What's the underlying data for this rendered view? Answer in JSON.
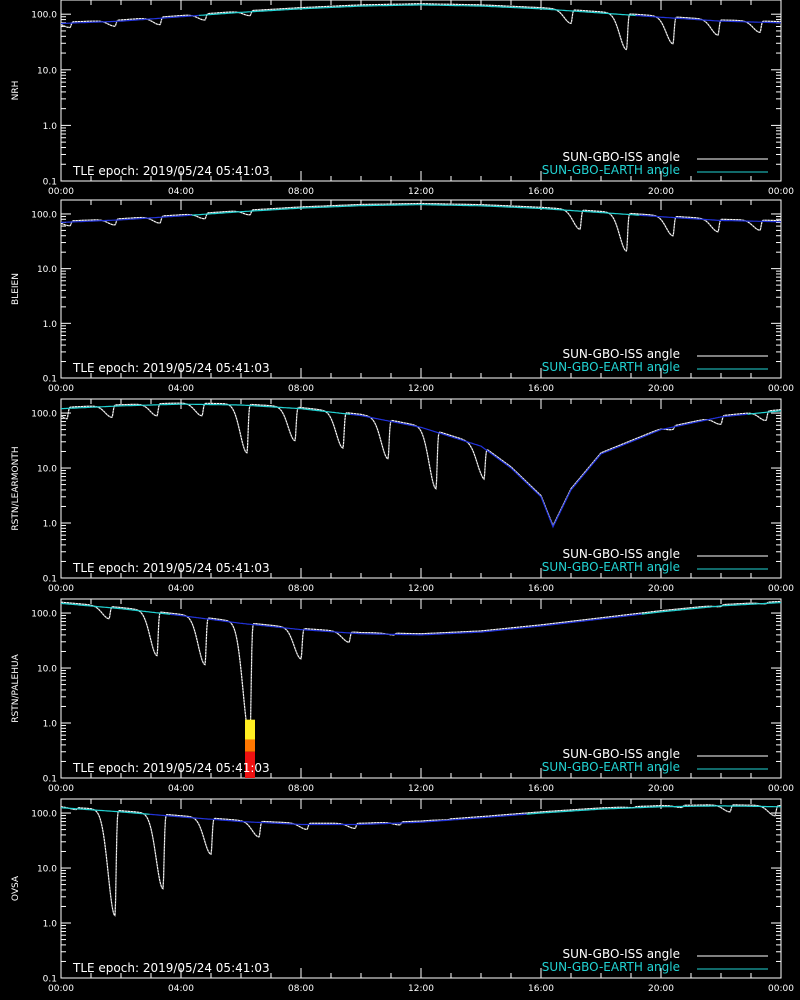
{
  "legend": {
    "iss_label": "SUN-GBO-ISS angle",
    "earth_label": "SUN-GBO-EARTH angle",
    "iss_color": "#ffffff",
    "earth_color": "#22d3d3",
    "earth_dip_color": "#2233dd",
    "iss_far_color": "#8a8a8a"
  },
  "epoch_text": "TLE epoch: 2019/05/24 05:41:03",
  "chart_data": [
    {
      "type": "line",
      "ylabel": "NRH",
      "xlim": [
        0,
        24
      ],
      "ylim": [
        0.1,
        180
      ],
      "yscale": "log",
      "x_ticks": [
        "00:00",
        "04:00",
        "08:00",
        "12:00",
        "16:00",
        "20:00",
        "00:00"
      ],
      "y_ticks": [
        "0.1",
        "1.0",
        "10.0",
        "100.0"
      ],
      "series": [
        {
          "name": "SUN-GBO-EARTH angle",
          "x": [
            0,
            2,
            4,
            6,
            8,
            10,
            12,
            14,
            16,
            18,
            20,
            22,
            24
          ],
          "y": [
            68,
            75,
            90,
            108,
            125,
            140,
            147,
            140,
            125,
            105,
            88,
            75,
            70
          ]
        },
        {
          "name": "SUN-GBO-ISS angle",
          "minima": [
            {
              "t": 0.3,
              "v": 55
            },
            {
              "t": 1.8,
              "v": 58
            },
            {
              "t": 3.3,
              "v": 62
            },
            {
              "t": 4.8,
              "v": 75
            },
            {
              "t": 6.3,
              "v": 90
            },
            {
              "t": 17.0,
              "v": 65
            },
            {
              "t": 18.85,
              "v": 22
            },
            {
              "t": 20.4,
              "v": 28
            },
            {
              "t": 21.9,
              "v": 40
            },
            {
              "t": 23.3,
              "v": 45
            }
          ]
        }
      ]
    },
    {
      "type": "line",
      "ylabel": "BLEIEN",
      "xlim": [
        0,
        24
      ],
      "ylim": [
        0.1,
        180
      ],
      "yscale": "log",
      "x_ticks": [
        "00:00",
        "04:00",
        "08:00",
        "12:00",
        "16:00",
        "20:00",
        "00:00"
      ],
      "y_ticks": [
        "0.1",
        "1.0",
        "10.0",
        "100.0"
      ],
      "series": [
        {
          "name": "SUN-GBO-EARTH angle",
          "x": [
            0,
            2,
            4,
            6,
            8,
            10,
            12,
            14,
            16,
            18,
            20,
            22,
            24
          ],
          "y": [
            70,
            78,
            92,
            110,
            128,
            142,
            148,
            141,
            126,
            106,
            89,
            76,
            72
          ]
        },
        {
          "name": "SUN-GBO-ISS angle",
          "minima": [
            {
              "t": 0.3,
              "v": 58
            },
            {
              "t": 1.8,
              "v": 60
            },
            {
              "t": 3.3,
              "v": 65
            },
            {
              "t": 4.8,
              "v": 78
            },
            {
              "t": 6.3,
              "v": 92
            },
            {
              "t": 17.3,
              "v": 50
            },
            {
              "t": 18.85,
              "v": 20
            },
            {
              "t": 20.4,
              "v": 38
            },
            {
              "t": 21.9,
              "v": 45
            },
            {
              "t": 23.3,
              "v": 48
            }
          ]
        }
      ]
    },
    {
      "type": "line",
      "ylabel": "RSTN/LEARMONTH",
      "xlim": [
        0,
        24
      ],
      "ylim": [
        0.1,
        180
      ],
      "yscale": "log",
      "x_ticks": [
        "00:00",
        "04:00",
        "08:00",
        "12:00",
        "16:00",
        "20:00",
        "00:00"
      ],
      "y_ticks": [
        "0.1",
        "1.0",
        "10.0",
        "100.0"
      ],
      "series": [
        {
          "name": "SUN-GBO-EARTH angle",
          "x": [
            0,
            2,
            4,
            6,
            8,
            10,
            12,
            14,
            15,
            16,
            16.4,
            17,
            18,
            20,
            22,
            24
          ],
          "y": [
            120,
            135,
            145,
            140,
            120,
            90,
            55,
            25,
            10,
            3,
            0.85,
            4,
            18,
            50,
            85,
            110
          ]
        },
        {
          "name": "SUN-GBO-ISS angle",
          "minima": [
            {
              "t": 0.2,
              "v": 75
            },
            {
              "t": 1.7,
              "v": 80
            },
            {
              "t": 3.2,
              "v": 85
            },
            {
              "t": 4.7,
              "v": 85
            },
            {
              "t": 6.2,
              "v": 18
            },
            {
              "t": 7.8,
              "v": 30
            },
            {
              "t": 9.4,
              "v": 22
            },
            {
              "t": 10.9,
              "v": 14
            },
            {
              "t": 12.5,
              "v": 4
            },
            {
              "t": 14.1,
              "v": 6
            },
            {
              "t": 15.7,
              "v": 15
            },
            {
              "t": 17.3,
              "v": 25
            },
            {
              "t": 18.9,
              "v": 35
            },
            {
              "t": 20.4,
              "v": 48
            },
            {
              "t": 22.0,
              "v": 60
            },
            {
              "t": 23.5,
              "v": 70
            }
          ]
        }
      ]
    },
    {
      "type": "line",
      "ylabel": "RSTN/PALEHUA",
      "xlim": [
        0,
        24
      ],
      "ylim": [
        0.1,
        180
      ],
      "yscale": "log",
      "x_ticks": [
        "00:00",
        "04:00",
        "08:00",
        "12:00",
        "16:00",
        "20:00",
        "00:00"
      ],
      "y_ticks": [
        "0.1",
        "1.0",
        "10.0",
        "100.0"
      ],
      "series": [
        {
          "name": "SUN-GBO-EARTH angle",
          "x": [
            0,
            2,
            4,
            6,
            8,
            10,
            12,
            14,
            16,
            18,
            20,
            22,
            24
          ],
          "y": [
            150,
            120,
            90,
            65,
            50,
            42,
            40,
            45,
            58,
            78,
            105,
            135,
            155
          ]
        },
        {
          "name": "SUN-GBO-ISS angle",
          "minima": [
            {
              "t": 1.6,
              "v": 75
            },
            {
              "t": 3.2,
              "v": 16
            },
            {
              "t": 4.8,
              "v": 11
            },
            {
              "t": 6.3,
              "v": 0.5
            },
            {
              "t": 8.0,
              "v": 14
            },
            {
              "t": 9.6,
              "v": 28
            },
            {
              "t": 11.1,
              "v": 38
            },
            {
              "t": 12.7,
              "v": 45
            },
            {
              "t": 14.3,
              "v": 58
            },
            {
              "t": 15.8,
              "v": 70
            },
            {
              "t": 17.4,
              "v": 85
            },
            {
              "t": 18.9,
              "v": 100
            },
            {
              "t": 20.5,
              "v": 115
            },
            {
              "t": 22.0,
              "v": 125
            },
            {
              "t": 23.5,
              "v": 140
            }
          ]
        }
      ],
      "flare_bar": {
        "t": 6.3,
        "segments": [
          {
            "from": 0.5,
            "to": 1.15,
            "color": "#ffee22"
          },
          {
            "from": 0.3,
            "to": 0.5,
            "color": "#ff7700"
          },
          {
            "from": 0.1,
            "to": 0.3,
            "color": "#ee1111"
          }
        ]
      }
    },
    {
      "type": "line",
      "ylabel": "OVSA",
      "xlim": [
        0,
        24
      ],
      "ylim": [
        0.1,
        180
      ],
      "yscale": "log",
      "x_ticks": [
        "00:00",
        "04:00",
        "08:00",
        "12:00",
        "16:00",
        "20:00",
        "00:00"
      ],
      "y_ticks": [
        "0.1",
        "1.0",
        "10.0",
        "100.0"
      ],
      "series": [
        {
          "name": "SUN-GBO-EARTH angle",
          "x": [
            0,
            2,
            4,
            6,
            8,
            10,
            12,
            14,
            16,
            18,
            20,
            22,
            24
          ],
          "y": [
            125,
            105,
            85,
            70,
            62,
            62,
            68,
            82,
            100,
            118,
            130,
            135,
            130
          ]
        },
        {
          "name": "SUN-GBO-ISS angle",
          "minima": [
            {
              "t": 0.5,
              "v": 110
            },
            {
              "t": 1.8,
              "v": 1.3
            },
            {
              "t": 3.4,
              "v": 4
            },
            {
              "t": 5.0,
              "v": 17
            },
            {
              "t": 6.6,
              "v": 35
            },
            {
              "t": 8.2,
              "v": 48
            },
            {
              "t": 9.8,
              "v": 50
            },
            {
              "t": 11.3,
              "v": 58
            },
            {
              "t": 12.9,
              "v": 72
            },
            {
              "t": 14.4,
              "v": 85
            },
            {
              "t": 16.0,
              "v": 100
            },
            {
              "t": 17.6,
              "v": 115
            },
            {
              "t": 19.1,
              "v": 120
            },
            {
              "t": 20.7,
              "v": 120
            },
            {
              "t": 22.3,
              "v": 100
            },
            {
              "t": 23.8,
              "v": 85
            }
          ]
        }
      ]
    }
  ]
}
